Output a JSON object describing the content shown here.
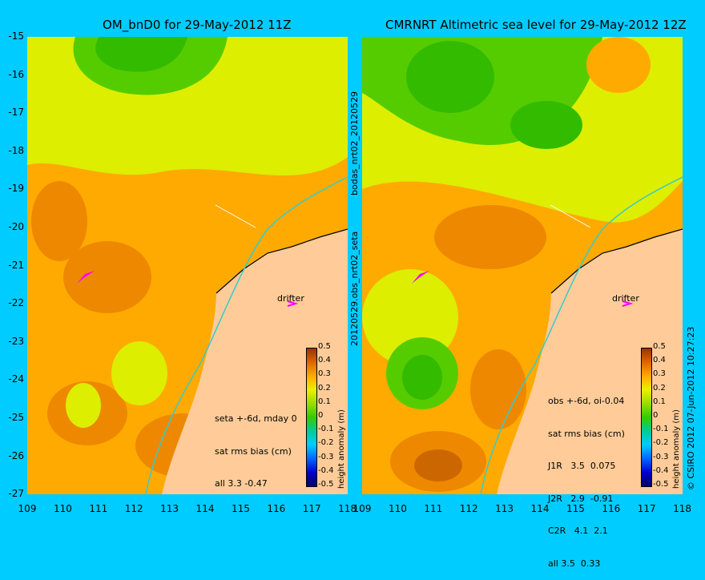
{
  "left_panel": {
    "title": "OM_bnD0 for 29-May-2012 11Z",
    "stats": [
      "seta +-6d, mday 0",
      "sat rms bias (cm)",
      "all 3.3 -0.47"
    ],
    "drifter_label": "drifter"
  },
  "right_panel": {
    "title": "CMRNRT Altimetric sea level  for 29-May-2012 12Z",
    "stats": [
      "obs +-6d, oi-0.04",
      "sat rms bias (cm)",
      "J1R   3.5  0.075",
      "J2R   2.9  -0.91",
      "C2R   4.1  2.1",
      "all 3.5  0.33"
    ],
    "drifter_label": "drifter"
  },
  "side_labels": {
    "between_top": "bodas_nrt02_20120529",
    "between_bottom": "20120529.obs_nrt02_seta",
    "right_edge": "© CSIRO 2012   07-Jun-2012 10:27:23"
  },
  "axes": {
    "latitudes": [
      "-15",
      "-16",
      "-17",
      "-18",
      "-19",
      "-20",
      "-21",
      "-22",
      "-23",
      "-24",
      "-25",
      "-26",
      "-27"
    ],
    "longitudes": [
      "109",
      "110",
      "111",
      "112",
      "113",
      "114",
      "115",
      "116",
      "117",
      "118"
    ]
  },
  "colorbar": {
    "title": "height anomaly (m)",
    "ticks": [
      "0.5",
      "0.4",
      "0.3",
      "0.2",
      "0.1",
      "0",
      "-0.1",
      "-0.2",
      "-0.3",
      "-0.4",
      "-0.5"
    ]
  },
  "colors": {
    "background": "#00ccff",
    "land": "#ffcc99",
    "coastline_track": "#33cccc",
    "drifter": "#ff00ff"
  }
}
